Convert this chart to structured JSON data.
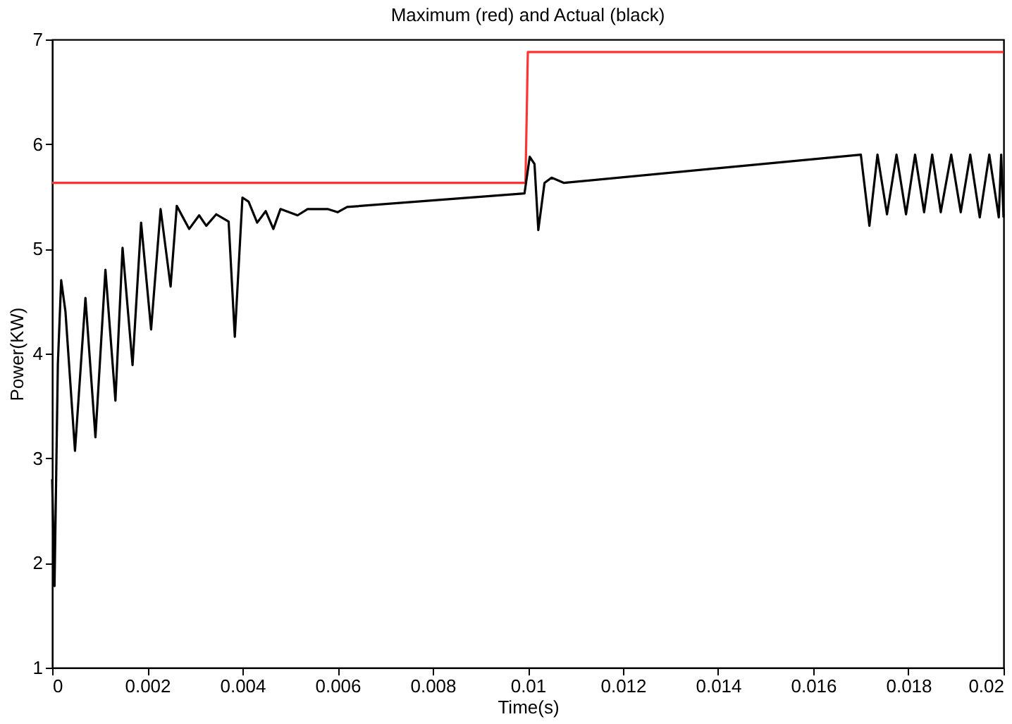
{
  "chart_data": {
    "type": "line",
    "title": "Maximum (red) and Actual (black)",
    "xlabel": "Time(s)",
    "ylabel": "Power(KW)",
    "xlim": [
      0,
      0.02
    ],
    "ylim": [
      1,
      7
    ],
    "xticks": [
      0,
      0.002,
      0.004,
      0.006,
      0.008,
      0.01,
      0.012,
      0.014,
      0.016,
      0.018,
      0.02
    ],
    "yticks": [
      1,
      2,
      3,
      4,
      5,
      6,
      7
    ],
    "grid": false,
    "legend": false,
    "marker": "none",
    "line_style": "solid",
    "series": [
      {
        "color": "#ff3333",
        "x": [
          0,
          0.00995,
          0.01,
          0.02
        ],
        "values": [
          5.63,
          5.63,
          6.88,
          6.88
        ]
      },
      {
        "color": "#000000",
        "x": [
          0,
          5e-05,
          0.00012,
          0.00019,
          0.00028,
          0.00048,
          0.0007,
          0.00091,
          0.00112,
          0.00133,
          0.00148,
          0.00169,
          0.00187,
          0.00208,
          0.00228,
          0.00249,
          0.00262,
          0.00288,
          0.00309,
          0.00324,
          0.00345,
          0.00371,
          0.00384,
          0.004,
          0.00413,
          0.00431,
          0.00449,
          0.00465,
          0.0048,
          0.00516,
          0.00537,
          0.00579,
          0.006,
          0.0062,
          0.00993,
          0.01004,
          0.01014,
          0.01022,
          0.01035,
          0.0105,
          0.01076,
          0.017,
          0.01718,
          0.01735,
          0.01755,
          0.01775,
          0.01795,
          0.01814,
          0.01833,
          0.0185,
          0.01868,
          0.0189,
          0.0191,
          0.0193,
          0.0195,
          0.0197,
          0.0199,
          0.01995,
          0.02
        ],
        "values": [
          2.8,
          1.78,
          3.9,
          4.7,
          4.4,
          3.07,
          4.53,
          3.2,
          4.8,
          3.55,
          5.01,
          3.89,
          5.25,
          4.23,
          5.38,
          4.64,
          5.41,
          5.19,
          5.32,
          5.22,
          5.33,
          5.26,
          4.16,
          5.49,
          5.45,
          5.25,
          5.36,
          5.19,
          5.38,
          5.32,
          5.38,
          5.38,
          5.35,
          5.4,
          5.53,
          5.88,
          5.81,
          5.18,
          5.63,
          5.68,
          5.63,
          5.9,
          5.22,
          5.9,
          5.33,
          5.9,
          5.33,
          5.9,
          5.35,
          5.9,
          5.35,
          5.9,
          5.35,
          5.9,
          5.3,
          5.9,
          5.3,
          5.9,
          5.3
        ]
      }
    ]
  }
}
